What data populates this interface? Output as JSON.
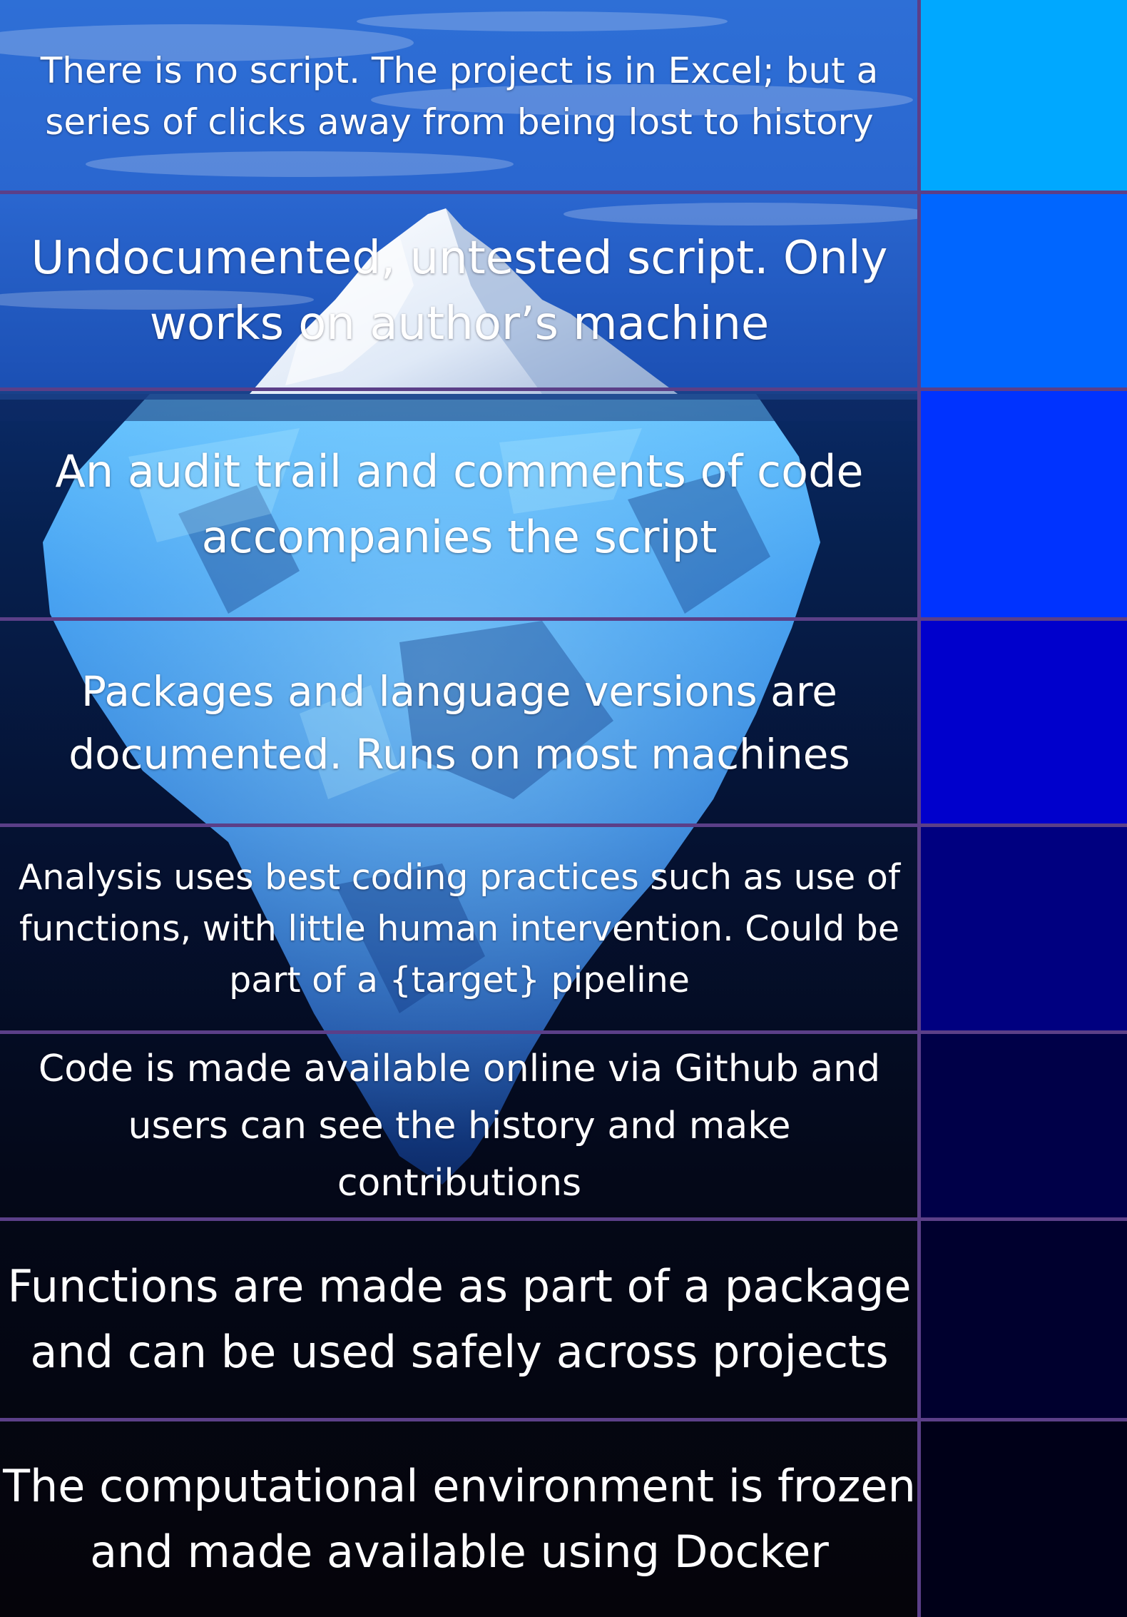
{
  "tiers": [
    {
      "label": "There is no script. The project is in Excel; but a series of clicks away from being lost to history",
      "swatch_color": "#00a8ff"
    },
    {
      "label": "Undocumented, untested script. Only works on author’s machine",
      "swatch_color": "#0066ff"
    },
    {
      "label": "An audit trail and comments of code accompanies the script",
      "swatch_color": "#0033ff"
    },
    {
      "label": "Packages and language versions are documented. Runs on most machines",
      "swatch_color": "#0000cc"
    },
    {
      "label": "Analysis uses best coding practices such as use of functions, with little human intervention. Could be part of a {target} pipeline",
      "swatch_color": "#000080"
    },
    {
      "label": "Code is made available online  via Github and users can see the history and make contributions",
      "swatch_color": "#000048"
    },
    {
      "label": "Functions are made as part of a package and can be used safely across projects",
      "swatch_color": "#00002e"
    },
    {
      "label": "The computational environment is frozen and made available using Docker",
      "swatch_color": "#000018"
    }
  ],
  "colors": {
    "sky": "#1f5fc4",
    "deep_water": "#05050f",
    "divider": "#5b3f88",
    "ice": "#3f9cf0"
  }
}
